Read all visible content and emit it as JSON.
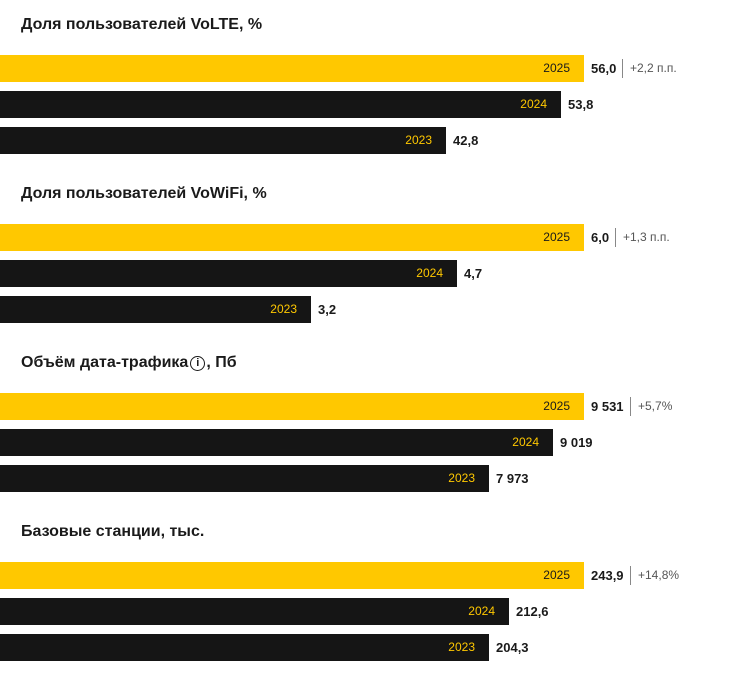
{
  "chart_data": [
    {
      "type": "bar",
      "title": "Доля пользователей VoLTE, %",
      "categories": [
        "2025",
        "2024",
        "2023"
      ],
      "values": [
        56.0,
        53.8,
        42.8
      ],
      "value_labels": [
        "56,0",
        "53,8",
        "42,8"
      ],
      "change_label": "+2,2 п.п.",
      "highlight_color": "#ffc800",
      "bar_color": "#151515"
    },
    {
      "type": "bar",
      "title": "Доля пользователей VoWiFi, %",
      "categories": [
        "2025",
        "2024",
        "2023"
      ],
      "values": [
        6.0,
        4.7,
        3.2
      ],
      "value_labels": [
        "6,0",
        "4,7",
        "3,2"
      ],
      "change_label": "+1,3 п.п.",
      "highlight_color": "#ffc800",
      "bar_color": "#151515"
    },
    {
      "type": "bar",
      "title": "Объём дата-трафика",
      "title_suffix": ", Пб",
      "title_icon": "info-icon",
      "categories": [
        "2025",
        "2024",
        "2023"
      ],
      "values": [
        9531,
        9019,
        7973
      ],
      "value_labels": [
        "9 531",
        "9 019",
        "7 973"
      ],
      "change_label": "+5,7%",
      "highlight_color": "#ffc800",
      "bar_color": "#151515"
    },
    {
      "type": "bar",
      "title": "Базовые станции, тыс.",
      "categories": [
        "2025",
        "2024",
        "2023"
      ],
      "values": [
        243.9,
        212.6,
        204.3
      ],
      "value_labels": [
        "243,9",
        "212,6",
        "204,3"
      ],
      "change_label": "+14,8%",
      "highlight_color": "#ffc800",
      "bar_color": "#151515"
    }
  ]
}
